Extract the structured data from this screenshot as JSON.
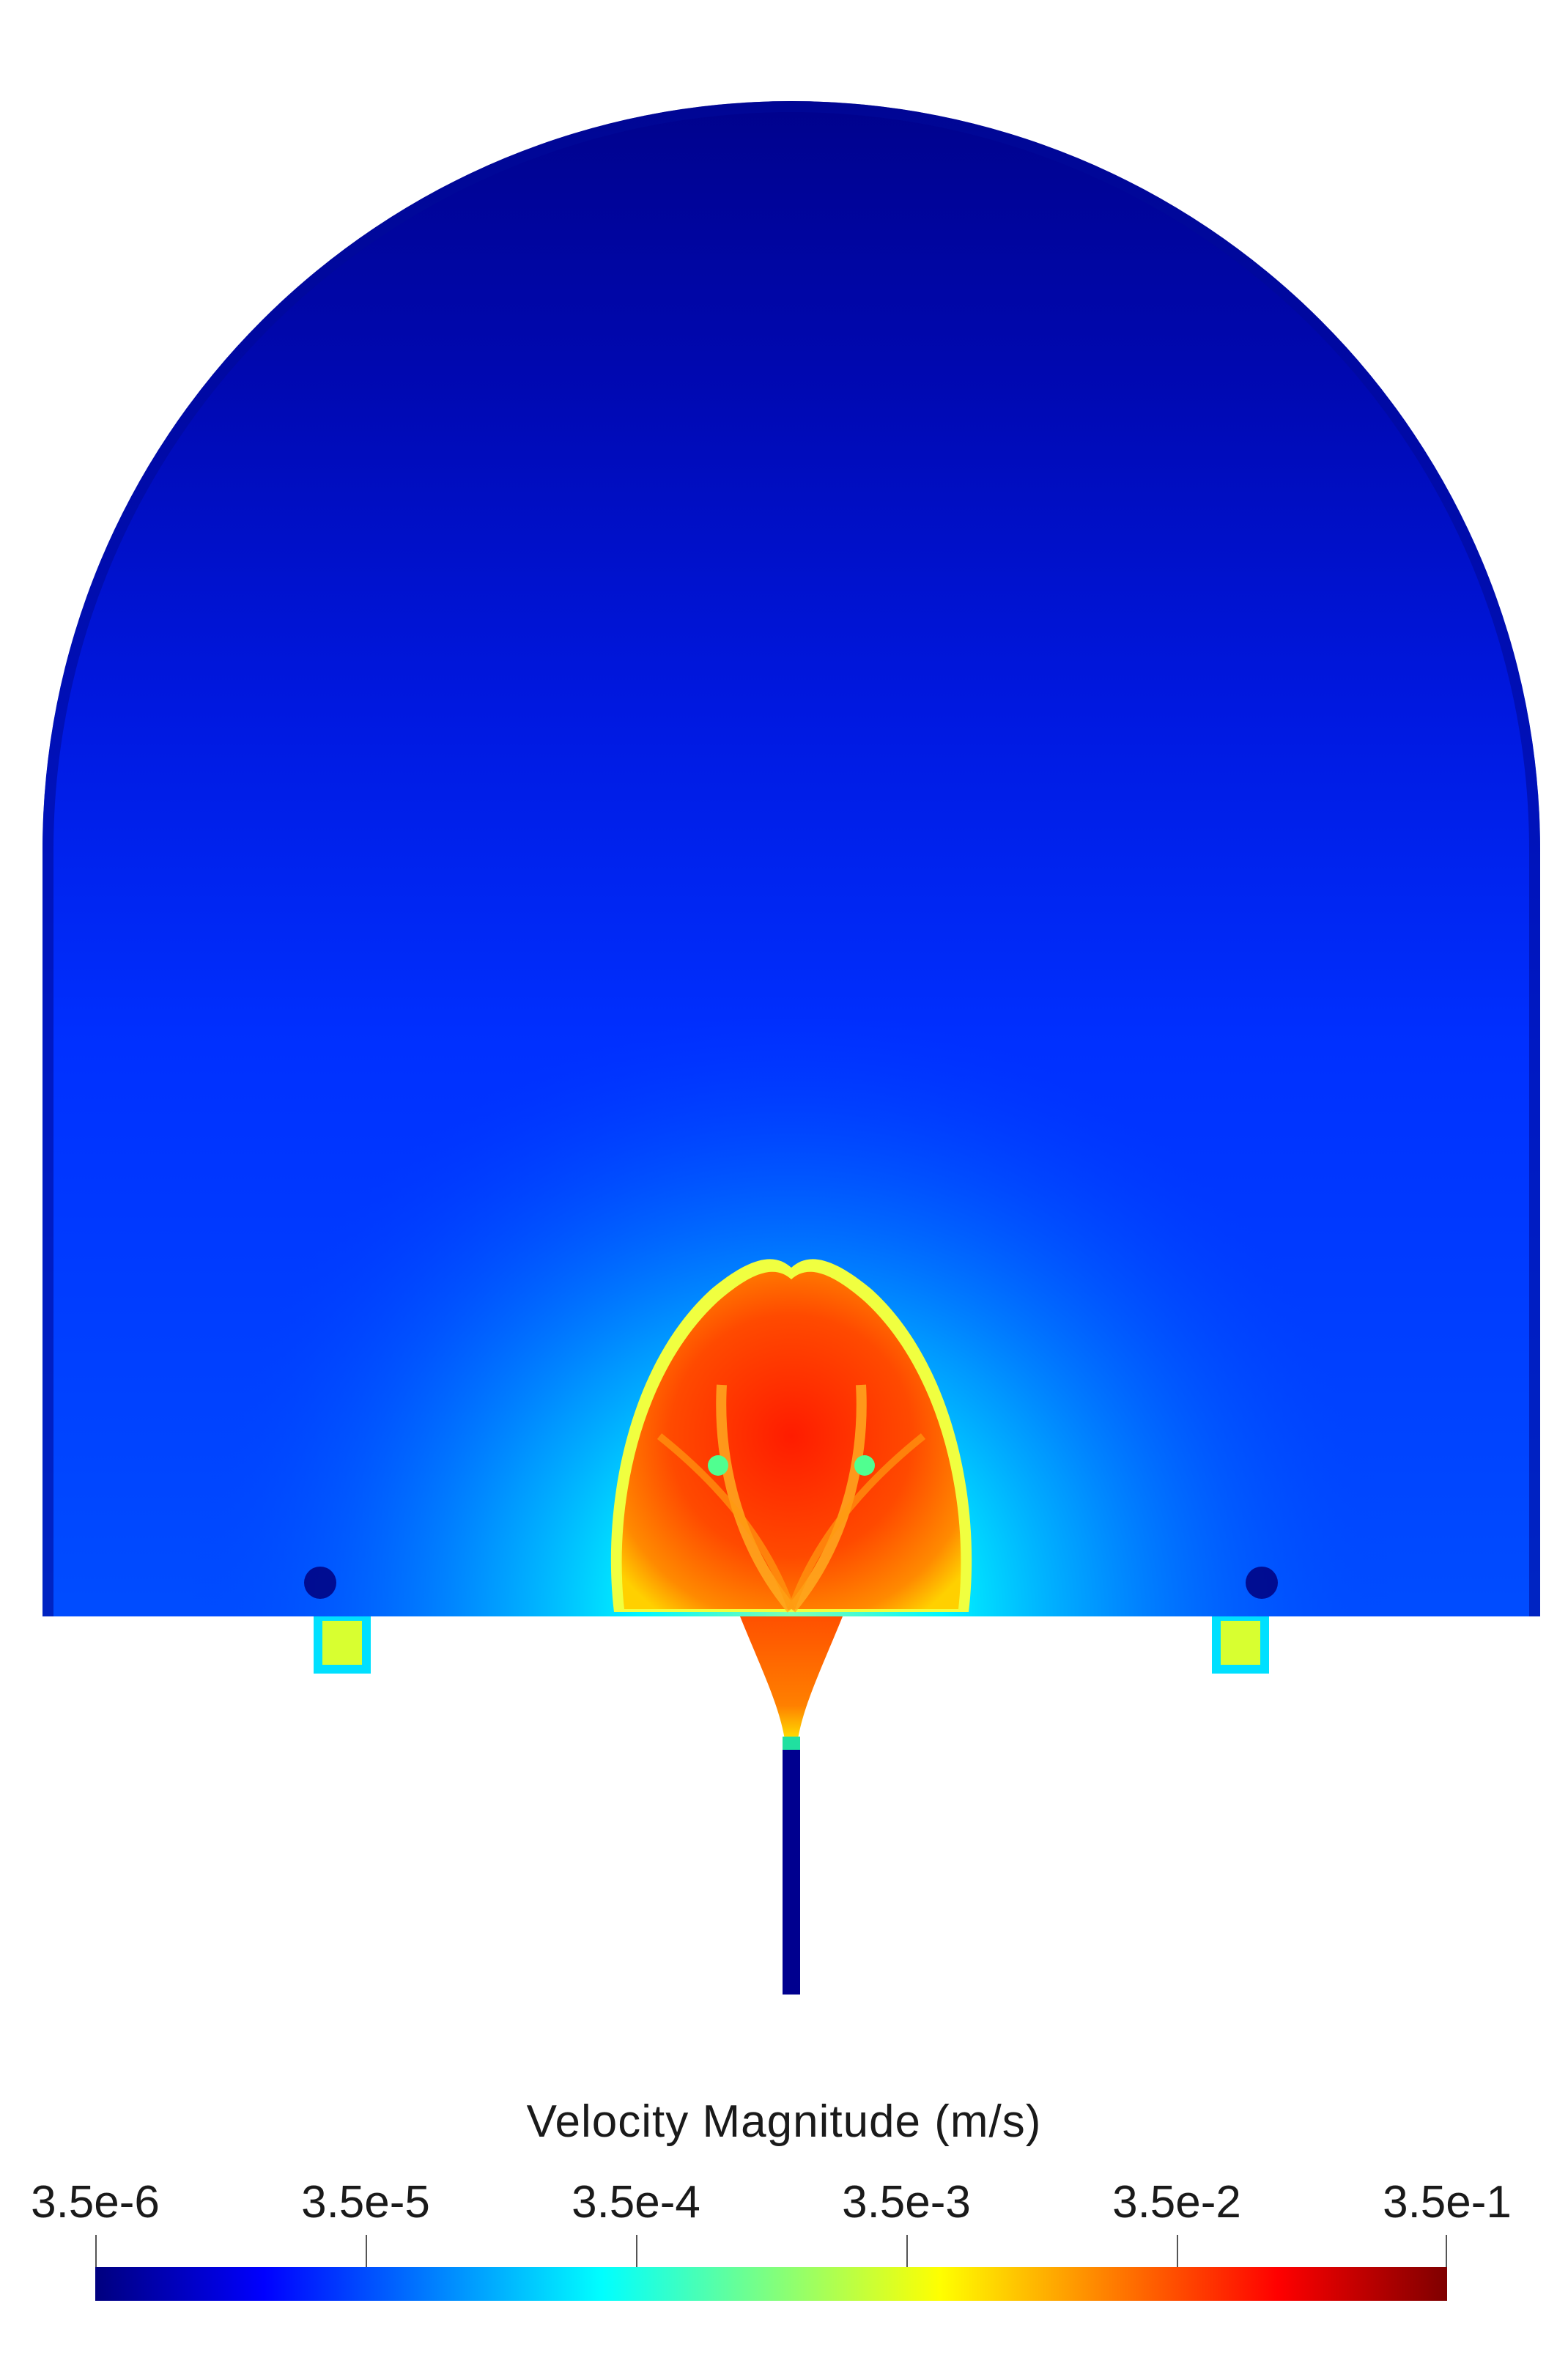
{
  "legend": {
    "title": "Velocity Magnitude (m/s)",
    "ticks": [
      "3.5e-6",
      "3.5e-5",
      "3.5e-4",
      "3.5e-3",
      "3.5e-2",
      "3.5e-1"
    ],
    "colormap": [
      "#00007f",
      "#0000ff",
      "#007fff",
      "#00ffff",
      "#7fff7f",
      "#ffff00",
      "#ff7f00",
      "#ff0000",
      "#7f0000"
    ]
  },
  "colors": {
    "background_dark": "#00007f",
    "background_blue": "#0a24e6",
    "mid_blue": "#1f6cff",
    "cyan": "#00f0ff",
    "orange": "#ff6a00",
    "red": "#ff3000",
    "yellow": "#ffff30"
  }
}
